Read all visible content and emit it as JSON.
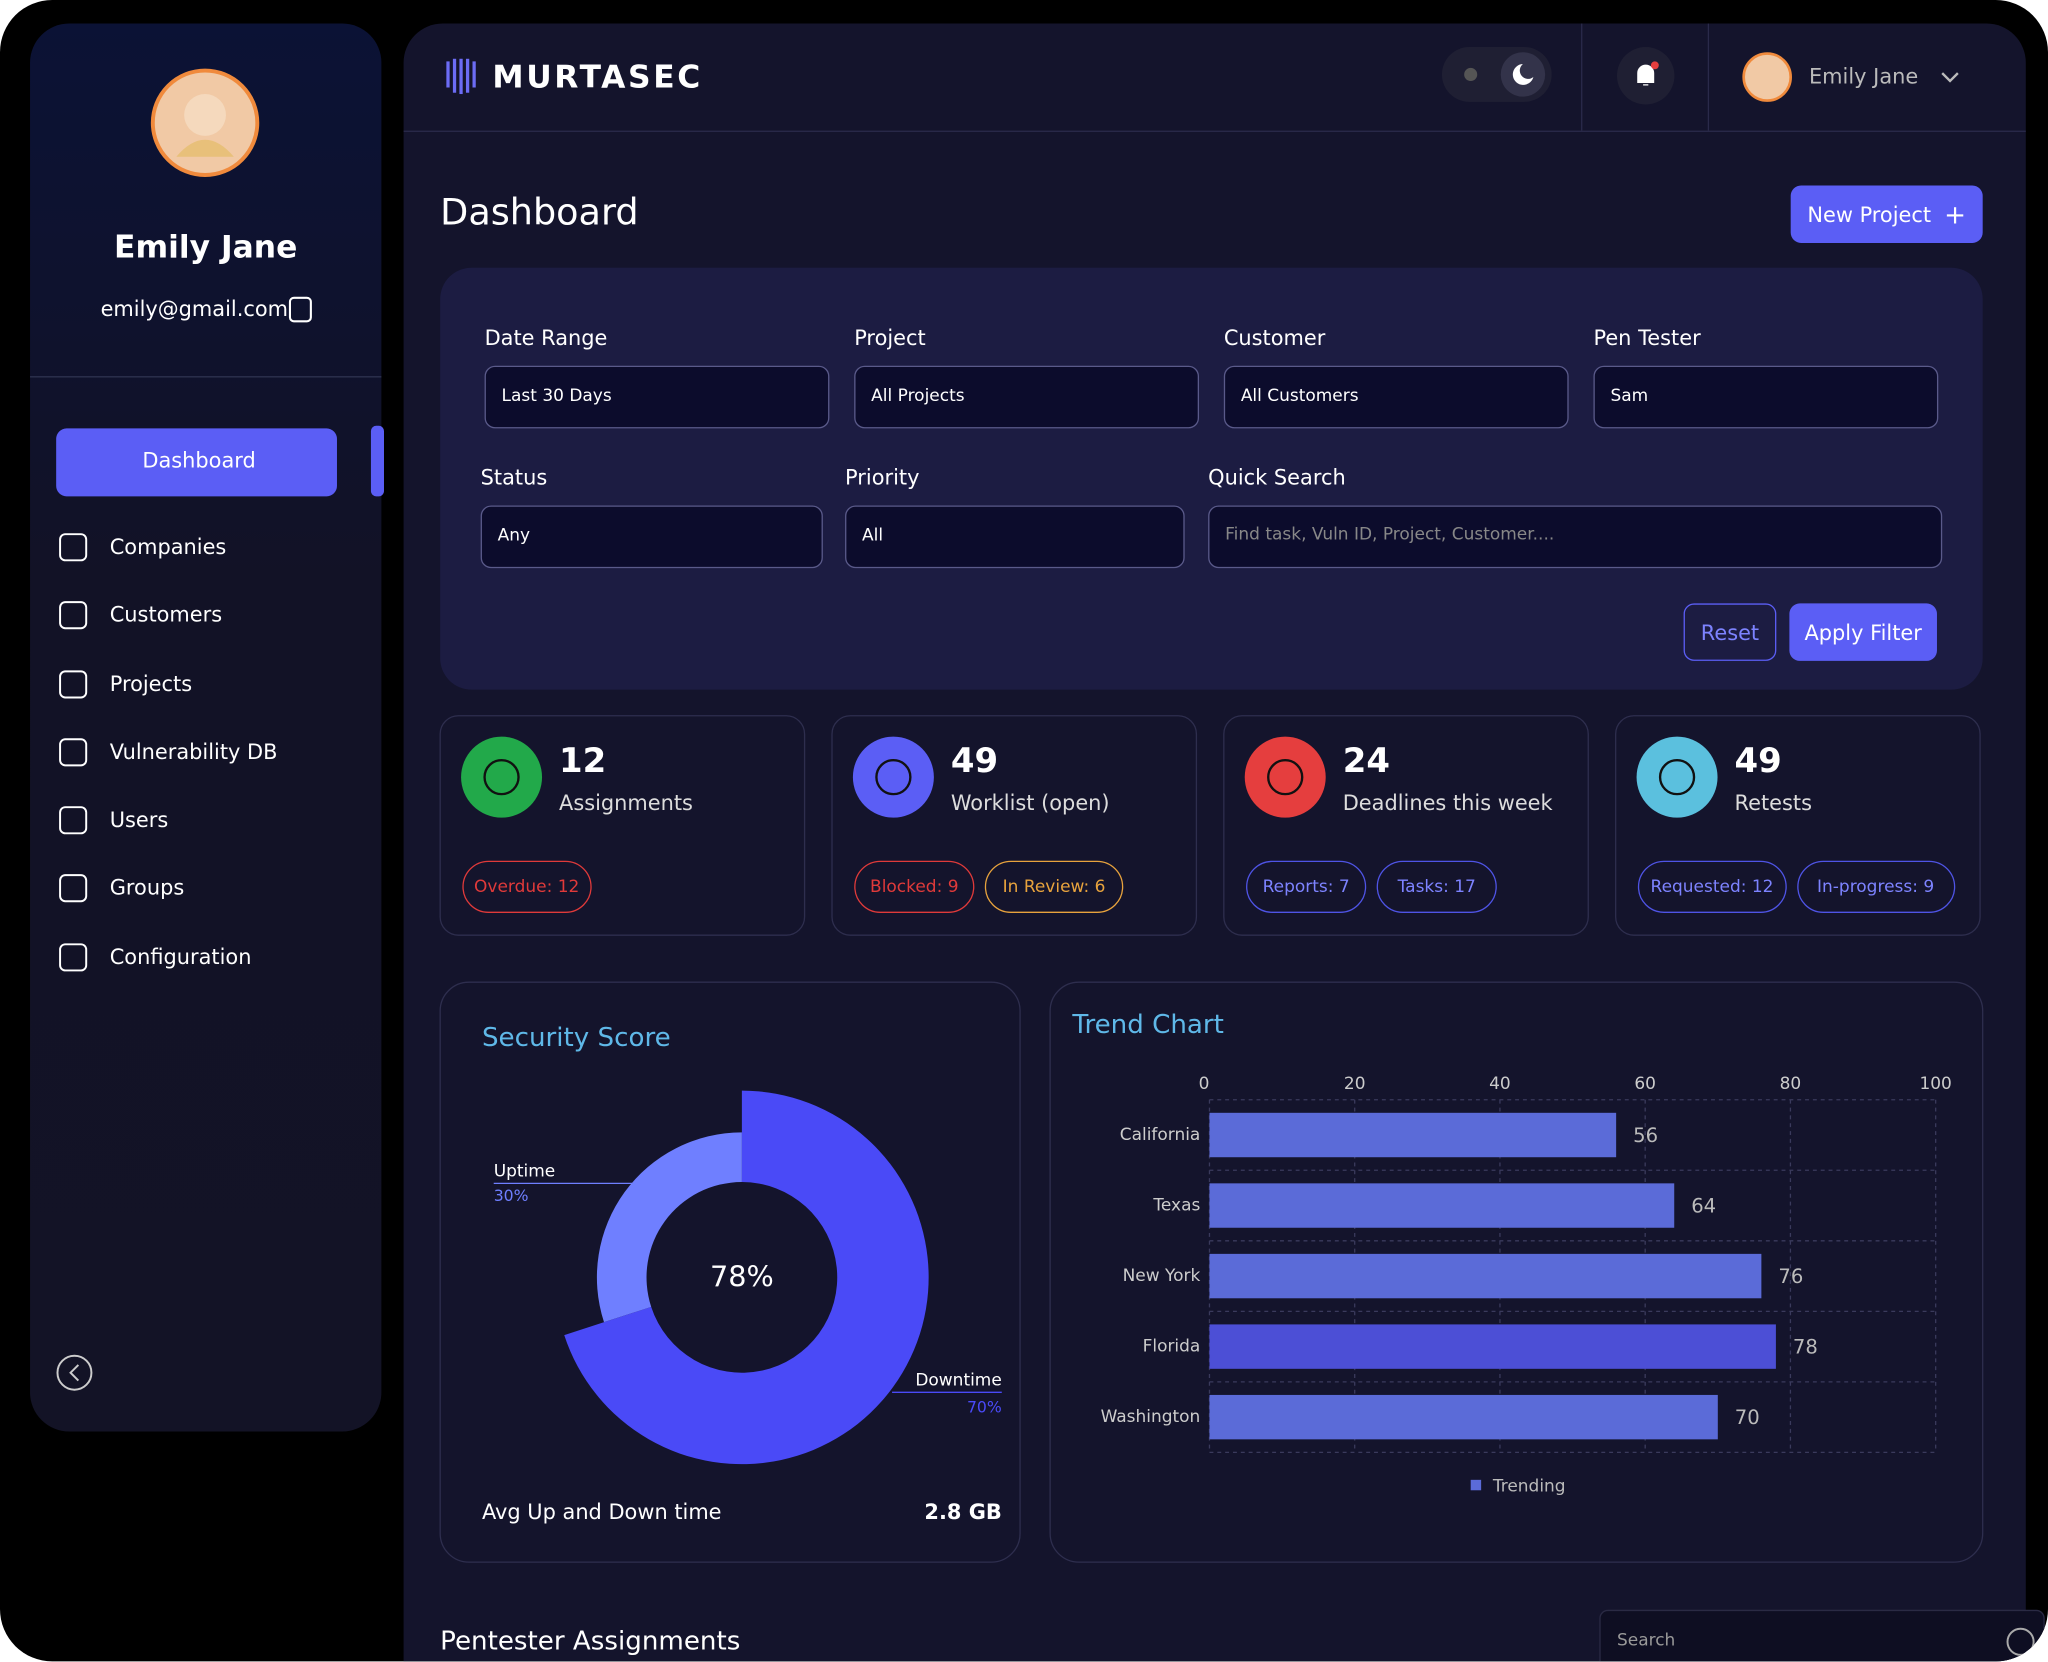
{
  "sidebar": {
    "name": "Emily Jane",
    "email": "emily@gmail.com",
    "nav": [
      "Dashboard",
      "Companies",
      "Customers",
      "Projects",
      "Vulnerability DB",
      "Users",
      "Groups",
      "Configuration"
    ]
  },
  "header": {
    "brand": "MURTASEC",
    "user": "Emily Jane"
  },
  "page_title": "Dashboard",
  "new_project": "New Project",
  "filters": [
    {
      "label": "Date Range",
      "value": "Last 30 Days"
    },
    {
      "label": "Project",
      "value": "All Projects"
    },
    {
      "label": "Customer",
      "value": "All Customers"
    },
    {
      "label": "Pen Tester",
      "value": "Sam"
    },
    {
      "label": "Status",
      "value": "Any"
    },
    {
      "label": "Priority",
      "value": "All"
    }
  ],
  "quick_search": {
    "label": "Quick Search",
    "placeholder": "Find task, Vuln ID, Project, Customer...."
  },
  "buttons": {
    "reset": "Reset",
    "apply": "Apply Filter"
  },
  "stats": [
    {
      "value": 12,
      "label": "Assignments",
      "badges": [
        "Overdue: 12"
      ]
    },
    {
      "value": 49,
      "label": "Worklist (open)",
      "badges": [
        "Blocked: 9",
        "In Review: 6"
      ]
    },
    {
      "value": 24,
      "label": "Deadlines this week",
      "badges": [
        "Reports: 7",
        "Tasks: 17"
      ]
    },
    {
      "value": 49,
      "label": "Retests",
      "badges": [
        "Requested: 12",
        "In-progress: 9"
      ]
    }
  ],
  "security_score": {
    "title": "Security Score",
    "center": "78%",
    "segments": [
      {
        "name": "Uptime",
        "value": 30,
        "label": "30%",
        "color": "#6f7fff"
      },
      {
        "name": "Downtime",
        "value": 70,
        "label": "70%",
        "color": "#4a4af7"
      }
    ],
    "footer_label": "Avg Up and Down time",
    "footer_value": "2.8 GB"
  },
  "trend_chart": {
    "type": "bar",
    "title": "Trend Chart",
    "categories": [
      "California",
      "Texas",
      "New  York",
      "Florida",
      "Washington"
    ],
    "values": [
      56,
      64,
      76,
      78,
      70
    ],
    "colors": [
      "#5b6bd8",
      "#5b6bd8",
      "#5b6bd8",
      "#4c4fd6",
      "#5b6bd8"
    ],
    "xlim": [
      0,
      100
    ],
    "xticks": [
      0,
      20,
      40,
      60,
      80,
      100
    ],
    "grid": true,
    "legend": "Trending"
  },
  "assignments": {
    "title": "Pentester Assignments",
    "search_placeholder": "Search"
  }
}
